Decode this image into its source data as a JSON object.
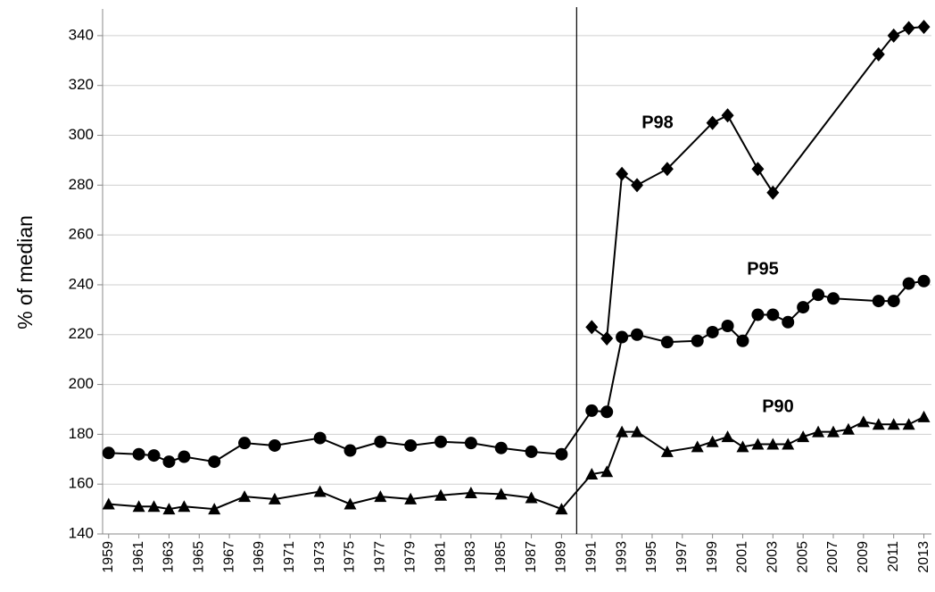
{
  "chart_data": {
    "type": "line",
    "y_label": "% of median",
    "xlim": [
      1958.6,
      2013.5
    ],
    "xticks": [
      1959,
      1961,
      1963,
      1965,
      1967,
      1969,
      1971,
      1973,
      1975,
      1977,
      1979,
      1981,
      1983,
      1985,
      1987,
      1989,
      1991,
      1993,
      1995,
      1997,
      1999,
      2001,
      2003,
      2005,
      2007,
      2009,
      2011,
      2013
    ],
    "ylim": [
      140,
      350
    ],
    "yticks": [
      140,
      160,
      180,
      200,
      220,
      240,
      260,
      280,
      300,
      320,
      340
    ],
    "grid": true,
    "vline": 1990,
    "series": [
      {
        "name": "P98",
        "marker": "diamond",
        "color": "#000000",
        "x": [
          1991,
          1992,
          1993,
          1994,
          1996,
          1999,
          2000,
          2002,
          2003,
          2010,
          2011,
          2012,
          2013
        ],
        "values": [
          223,
          218.5,
          284.5,
          280,
          286.5,
          305,
          308,
          286.5,
          277,
          332.5,
          340,
          343,
          343.5
        ]
      },
      {
        "name": "P95",
        "marker": "circle",
        "color": "#000000",
        "x": [
          1959,
          1961,
          1962,
          1963,
          1964,
          1966,
          1968,
          1970,
          1973,
          1975,
          1977,
          1979,
          1981,
          1983,
          1985,
          1987,
          1989,
          1991,
          1992,
          1993,
          1994,
          1996,
          1998,
          1999,
          2000,
          2001,
          2002,
          2003,
          2004,
          2005,
          2006,
          2007,
          2010,
          2011,
          2012,
          2013
        ],
        "values": [
          172.5,
          172,
          171.5,
          169,
          171,
          169,
          176.5,
          175.5,
          178.5,
          173.5,
          177,
          175.5,
          177,
          176.5,
          174.5,
          173,
          172,
          189.5,
          189,
          219,
          220,
          217,
          217.5,
          221,
          223.5,
          217.5,
          228,
          228,
          225,
          231,
          236,
          234.5,
          233.5,
          233.5,
          240.5,
          241.5
        ]
      },
      {
        "name": "P90",
        "marker": "triangle",
        "color": "#000000",
        "x": [
          1959,
          1961,
          1962,
          1963,
          1964,
          1966,
          1968,
          1970,
          1973,
          1975,
          1977,
          1979,
          1981,
          1983,
          1985,
          1987,
          1989,
          1991,
          1992,
          1993,
          1994,
          1996,
          1998,
          1999,
          2000,
          2001,
          2002,
          2003,
          2004,
          2005,
          2006,
          2007,
          2008,
          2009,
          2010,
          2011,
          2012,
          2013
        ],
        "values": [
          152,
          151,
          151,
          150,
          151,
          150,
          155,
          154,
          157,
          152,
          155,
          154,
          155.5,
          156.5,
          156,
          154.5,
          150,
          164,
          165,
          181,
          181,
          173,
          175,
          177,
          179,
          175,
          176,
          176,
          176,
          179,
          181,
          181,
          182,
          185,
          184,
          184,
          184,
          187
        ]
      }
    ]
  }
}
